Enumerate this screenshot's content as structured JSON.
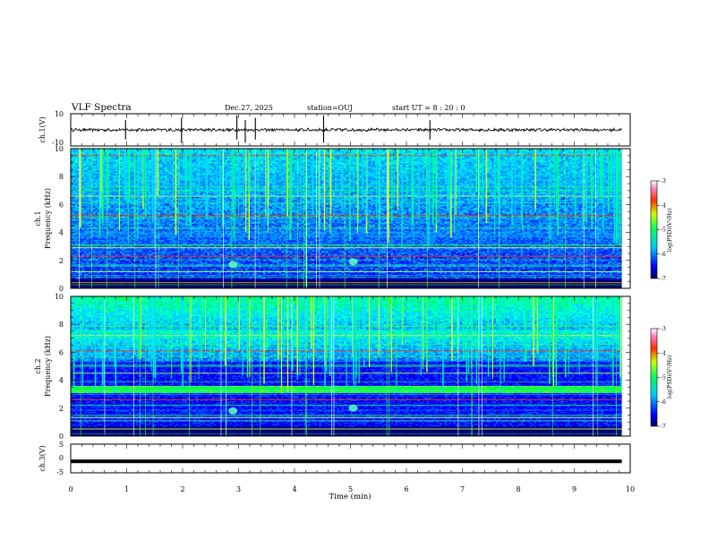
{
  "header": {
    "title": "VLF Spectra",
    "date": "Dec.27, 2025",
    "station": "station=OUJ",
    "start_ut": "start  UT =   8 : 20 : 0"
  },
  "chart_data": [
    {
      "type": "line",
      "panel": "ch1-waveform",
      "ylabel": "ch.1(V)",
      "ylim": [
        -10,
        10
      ],
      "yticks": [
        "10",
        "-10"
      ],
      "xlim": [
        0,
        10
      ],
      "baseline": 0,
      "spikes_min": [
        0.98,
        1.98,
        2.97,
        3.12,
        3.3,
        4.52,
        6.42
      ]
    },
    {
      "type": "heatmap",
      "panel": "ch1-spectrogram",
      "ylabel_top": "ch.1",
      "ylabel": "Frequency (kHz)",
      "ylim": [
        0,
        10
      ],
      "yticks": [
        "0",
        "2",
        "4",
        "6",
        "8",
        "10"
      ],
      "xlim": [
        0,
        10
      ],
      "colorbar": {
        "label": "log(PSD)(V²/Hz)",
        "range": [
          -7,
          -3
        ],
        "ticks": [
          "-3",
          "-4",
          "-5",
          "-6",
          "-7"
        ]
      },
      "data_end_min": 9.85,
      "strong_lines_khz": [
        0.4,
        1.2,
        1.6,
        2.3,
        2.9,
        3.1,
        5.2,
        6.6,
        7.0,
        9.5
      ],
      "bright_spots": [
        {
          "t": 2.9,
          "f": 1.7
        },
        {
          "t": 5.05,
          "f": 1.9
        }
      ]
    },
    {
      "type": "heatmap",
      "panel": "ch2-spectrogram",
      "ylabel_top": "ch.2",
      "ylabel": "Frequency (kHz)",
      "ylim": [
        0,
        10
      ],
      "yticks": [
        "0",
        "2",
        "4",
        "6",
        "8",
        "10"
      ],
      "xlim": [
        0,
        10
      ],
      "colorbar": {
        "label": "log(PSD)(V²/Hz)",
        "range": [
          -7,
          -3
        ],
        "ticks": [
          "-3",
          "-4",
          "-5",
          "-6",
          "-7"
        ]
      },
      "data_end_min": 9.85,
      "band_khz": [
        3.1,
        3.6
      ],
      "strong_lines_khz": [
        0.5,
        1.3,
        2.2,
        2.6,
        4.5,
        5.0,
        6.1,
        7.2
      ],
      "bright_spots": [
        {
          "t": 2.9,
          "f": 1.8
        },
        {
          "t": 5.05,
          "f": 2.0
        }
      ]
    },
    {
      "type": "line",
      "panel": "ch3-waveform",
      "ylabel": "ch.3(V)",
      "ylim": [
        -5,
        5
      ],
      "yticks": [
        "5",
        "0",
        "-5"
      ],
      "xlim": [
        0,
        10
      ],
      "xticks": [
        "0",
        "1",
        "2",
        "3",
        "4",
        "5",
        "6",
        "7",
        "8",
        "9",
        "10"
      ],
      "xlabel": "Time (min)",
      "level": -1.0
    }
  ]
}
